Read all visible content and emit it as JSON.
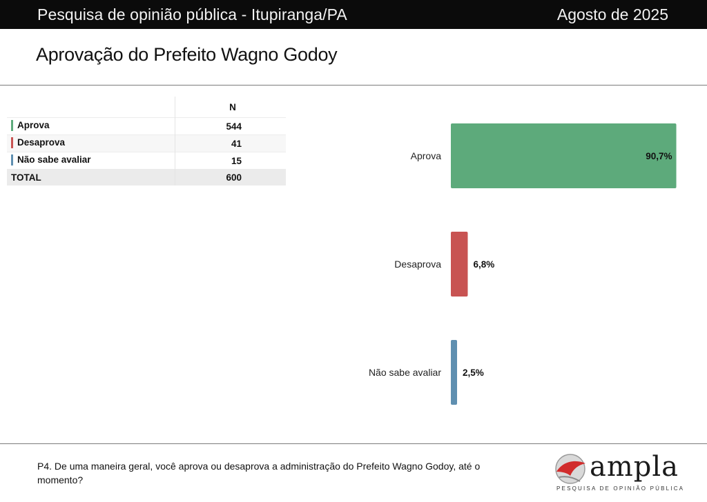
{
  "header": {
    "survey_title": "Pesquisa de opinião pública - Itupiranga/PA",
    "date": "Agosto de 2025"
  },
  "page_title": "Aprovação do Prefeito Wagno Godoy",
  "table": {
    "column_header": "N",
    "rows": [
      {
        "label": "Aprova",
        "n": "544",
        "color": "#5daa7b"
      },
      {
        "label": "Desaprova",
        "n": "41",
        "color": "#c85352"
      },
      {
        "label": "Não sabe avaliar",
        "n": "15",
        "color": "#5f8fb0"
      }
    ],
    "total_label": "TOTAL",
    "total_n": "600"
  },
  "chart_data": {
    "type": "bar",
    "orientation": "horizontal",
    "categories": [
      "Aprova",
      "Desaprova",
      "Não sabe avaliar"
    ],
    "values": [
      90.7,
      6.8,
      2.5
    ],
    "value_labels": [
      "90,7%",
      "6,8%",
      "2,5%"
    ],
    "colors": [
      "#5daa7b",
      "#c85352",
      "#5f8fb0"
    ],
    "xlim": [
      0,
      100
    ],
    "grid": false
  },
  "footer": {
    "question": "P4. De uma maneira geral, você aprova ou desaprova a administração do Prefeito Wagno Godoy, até o momento?"
  },
  "logo": {
    "name": "ampla",
    "tagline": "PESQUISA DE OPINIÃO PÚBLICA"
  }
}
